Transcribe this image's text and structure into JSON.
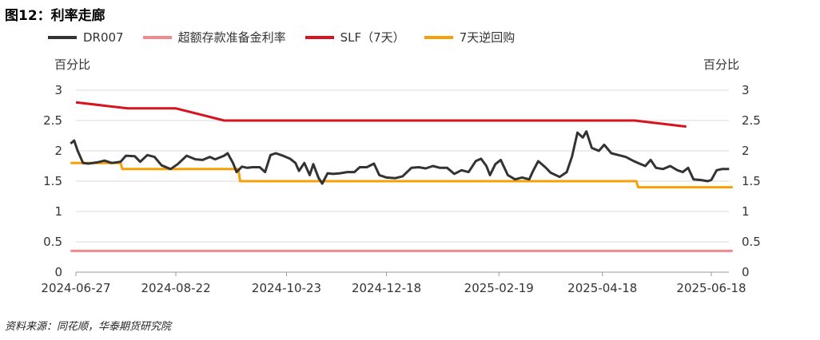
{
  "title": "图12：利率走廊",
  "source": "资料来源：同花顺，华泰期货研究院",
  "unit_left": "百分比",
  "unit_right": "百分比",
  "legend": [
    {
      "label": "DR007",
      "color": "#333333"
    },
    {
      "label": "超额存款准备金利率",
      "color": "#f08a8f"
    },
    {
      "label": "SLF（7天）",
      "color": "#d7141d"
    },
    {
      "label": "7天逆回购",
      "color": "#f5a008"
    }
  ],
  "chart_data": {
    "type": "line",
    "x_ticks": [
      "2024-06-27",
      "2024-08-22",
      "2024-10-23",
      "2024-12-18",
      "2025-02-19",
      "2025-04-18",
      "2025-06-18"
    ],
    "x_range": [
      "2024-06-27",
      "2025-06-30"
    ],
    "ylim": [
      0,
      3
    ],
    "y_ticks": [
      "0",
      "0.5",
      "1",
      "1.5",
      "2",
      "2.5",
      "3"
    ],
    "grid": "horizontal",
    "legend_position": "top",
    "series": [
      {
        "name": "DR007",
        "color": "#333333",
        "points": [
          [
            "2024-06-24",
            2.12
          ],
          [
            "2024-06-26",
            2.17
          ],
          [
            "2024-06-28",
            2.0
          ],
          [
            "2024-07-01",
            1.8
          ],
          [
            "2024-07-04",
            1.79
          ],
          [
            "2024-07-09",
            1.81
          ],
          [
            "2024-07-13",
            1.84
          ],
          [
            "2024-07-17",
            1.8
          ],
          [
            "2024-07-22",
            1.82
          ],
          [
            "2024-07-25",
            1.92
          ],
          [
            "2024-07-30",
            1.91
          ],
          [
            "2024-08-02",
            1.82
          ],
          [
            "2024-08-06",
            1.93
          ],
          [
            "2024-08-10",
            1.9
          ],
          [
            "2024-08-14",
            1.76
          ],
          [
            "2024-08-19",
            1.7
          ],
          [
            "2024-08-23",
            1.78
          ],
          [
            "2024-08-28",
            1.92
          ],
          [
            "2024-09-02",
            1.86
          ],
          [
            "2024-09-06",
            1.85
          ],
          [
            "2024-09-10",
            1.9
          ],
          [
            "2024-09-13",
            1.86
          ],
          [
            "2024-09-18",
            1.92
          ],
          [
            "2024-09-20",
            1.96
          ],
          [
            "2024-09-23",
            1.8
          ],
          [
            "2024-09-25",
            1.65
          ],
          [
            "2024-09-28",
            1.74
          ],
          [
            "2024-10-01",
            1.72
          ],
          [
            "2024-10-04",
            1.73
          ],
          [
            "2024-10-08",
            1.73
          ],
          [
            "2024-10-11",
            1.65
          ],
          [
            "2024-10-14",
            1.93
          ],
          [
            "2024-10-17",
            1.96
          ],
          [
            "2024-10-21",
            1.92
          ],
          [
            "2024-10-25",
            1.87
          ],
          [
            "2024-10-28",
            1.8
          ],
          [
            "2024-10-30",
            1.67
          ],
          [
            "2024-11-02",
            1.8
          ],
          [
            "2024-11-05",
            1.6
          ],
          [
            "2024-11-07",
            1.78
          ],
          [
            "2024-11-10",
            1.55
          ],
          [
            "2024-11-12",
            1.46
          ],
          [
            "2024-11-15",
            1.63
          ],
          [
            "2024-11-18",
            1.62
          ],
          [
            "2024-11-22",
            1.63
          ],
          [
            "2024-11-26",
            1.65
          ],
          [
            "2024-11-30",
            1.65
          ],
          [
            "2024-12-03",
            1.73
          ],
          [
            "2024-12-07",
            1.73
          ],
          [
            "2024-12-11",
            1.79
          ],
          [
            "2024-12-14",
            1.6
          ],
          [
            "2024-12-18",
            1.56
          ],
          [
            "2024-12-23",
            1.55
          ],
          [
            "2024-12-27",
            1.58
          ],
          [
            "2025-01-01",
            1.72
          ],
          [
            "2025-01-05",
            1.73
          ],
          [
            "2025-01-09",
            1.71
          ],
          [
            "2025-01-13",
            1.75
          ],
          [
            "2025-01-17",
            1.72
          ],
          [
            "2025-01-21",
            1.72
          ],
          [
            "2025-01-25",
            1.62
          ],
          [
            "2025-01-29",
            1.68
          ],
          [
            "2025-02-02",
            1.65
          ],
          [
            "2025-02-06",
            1.83
          ],
          [
            "2025-02-09",
            1.87
          ],
          [
            "2025-02-12",
            1.75
          ],
          [
            "2025-02-14",
            1.6
          ],
          [
            "2025-02-17",
            1.78
          ],
          [
            "2025-02-20",
            1.85
          ],
          [
            "2025-02-24",
            1.6
          ],
          [
            "2025-02-28",
            1.53
          ],
          [
            "2025-03-04",
            1.56
          ],
          [
            "2025-03-08",
            1.53
          ],
          [
            "2025-03-10",
            1.66
          ],
          [
            "2025-03-13",
            1.83
          ],
          [
            "2025-03-17",
            1.73
          ],
          [
            "2025-03-20",
            1.64
          ],
          [
            "2025-03-25",
            1.57
          ],
          [
            "2025-03-29",
            1.65
          ],
          [
            "2025-04-01",
            1.91
          ],
          [
            "2025-04-04",
            2.3
          ],
          [
            "2025-04-07",
            2.22
          ],
          [
            "2025-04-09",
            2.32
          ],
          [
            "2025-04-12",
            2.05
          ],
          [
            "2025-04-16",
            2.0
          ],
          [
            "2025-04-19",
            2.1
          ],
          [
            "2025-04-23",
            1.96
          ],
          [
            "2025-04-27",
            1.93
          ],
          [
            "2025-05-01",
            1.9
          ],
          [
            "2025-05-05",
            1.84
          ],
          [
            "2025-05-08",
            1.8
          ],
          [
            "2025-05-12",
            1.75
          ],
          [
            "2025-05-15",
            1.85
          ],
          [
            "2025-05-18",
            1.72
          ],
          [
            "2025-05-22",
            1.7
          ],
          [
            "2025-05-26",
            1.75
          ],
          [
            "2025-05-30",
            1.68
          ],
          [
            "2025-06-02",
            1.65
          ],
          [
            "2025-06-05",
            1.72
          ],
          [
            "2025-06-08",
            1.53
          ],
          [
            "2025-06-12",
            1.52
          ],
          [
            "2025-06-16",
            1.5
          ],
          [
            "2025-06-18",
            1.52
          ],
          [
            "2025-06-21",
            1.68
          ],
          [
            "2025-06-24",
            1.7
          ],
          [
            "2025-06-28",
            1.7
          ]
        ]
      },
      {
        "name": "超额存款准备金利率",
        "color": "#f08a8f",
        "points": [
          [
            "2024-06-24",
            0.35
          ],
          [
            "2025-06-30",
            0.35
          ]
        ]
      },
      {
        "name": "SLF（7天）",
        "color": "#d7141d",
        "points": [
          [
            "2024-06-27",
            2.8
          ],
          [
            "2024-07-26",
            2.7
          ],
          [
            "2024-08-22",
            2.7
          ],
          [
            "2024-09-18",
            2.5
          ],
          [
            "2025-05-06",
            2.5
          ],
          [
            "2025-06-04",
            2.4
          ]
        ]
      },
      {
        "name": "7天逆回购",
        "color": "#f5a008",
        "points": [
          [
            "2024-06-24",
            1.8
          ],
          [
            "2024-07-22",
            1.8
          ],
          [
            "2024-07-23",
            1.7
          ],
          [
            "2024-09-26",
            1.7
          ],
          [
            "2024-09-27",
            1.5
          ],
          [
            "2025-05-07",
            1.5
          ],
          [
            "2025-05-08",
            1.4
          ],
          [
            "2025-06-30",
            1.4
          ]
        ]
      }
    ]
  }
}
